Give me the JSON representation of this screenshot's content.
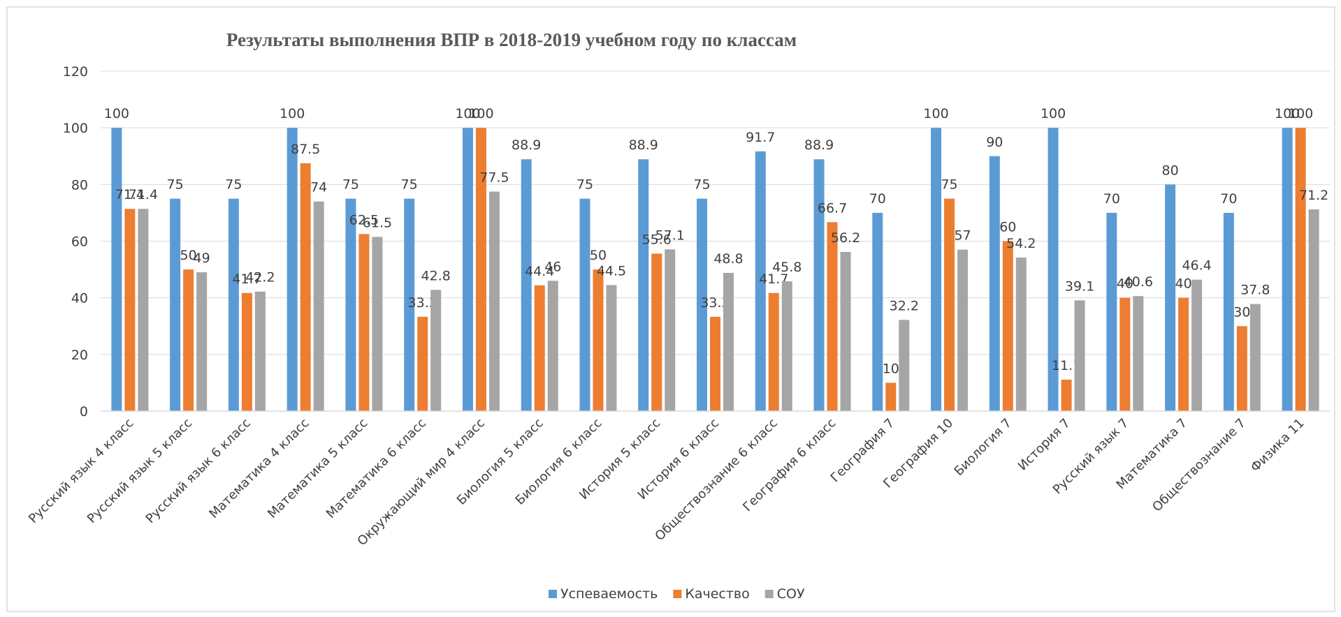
{
  "chart_data": {
    "type": "bar",
    "title": "Результаты выполнения ВПР в 2018-2019 учебном году по классам",
    "categories": [
      "Русский язык 4 класс",
      "Русский язык 5 класс",
      "Русский язык 6 класс",
      "Математика 4 класс",
      "Математика 5 класс",
      "Математика 6 класс",
      "Окружающий мир 4 класс",
      "Биология 5 класс",
      "Биология 6 класс",
      "История 5 класс",
      "История 6 класс",
      "Обществознание 6 класс",
      "География 6 класс",
      "География 7",
      "География 10",
      "Биология 7",
      "История 7",
      "Русский язык 7",
      "Математика 7",
      "Обществознание 7",
      "Физика 11"
    ],
    "series": [
      {
        "name": "Успеваемость",
        "color": "#5b9bd5",
        "values": [
          100,
          75,
          75,
          100,
          75,
          75,
          100,
          88.9,
          75,
          88.9,
          75,
          91.7,
          88.9,
          70,
          100,
          90,
          100,
          70,
          80,
          70,
          100
        ]
      },
      {
        "name": "Качество",
        "color": "#ed7d31",
        "values": [
          71.4,
          50,
          41.7,
          87.5,
          62.5,
          33.3,
          100,
          44.4,
          50,
          55.6,
          33.3,
          41.7,
          66.7,
          10,
          75,
          60,
          11.1,
          40,
          40,
          30,
          100
        ]
      },
      {
        "name": "СОУ",
        "color": "#a5a5a5",
        "values": [
          71.4,
          49,
          42.2,
          74,
          61.5,
          42.8,
          77.5,
          46,
          44.5,
          57.1,
          48.8,
          45.8,
          56.2,
          32.2,
          57,
          54.2,
          39.1,
          40.6,
          46.4,
          37.8,
          71.2
        ]
      }
    ],
    "ylim": [
      0,
      120
    ],
    "yticks": [
      0,
      20,
      40,
      60,
      80,
      100,
      120
    ],
    "grid": true,
    "legend": "bottom"
  }
}
